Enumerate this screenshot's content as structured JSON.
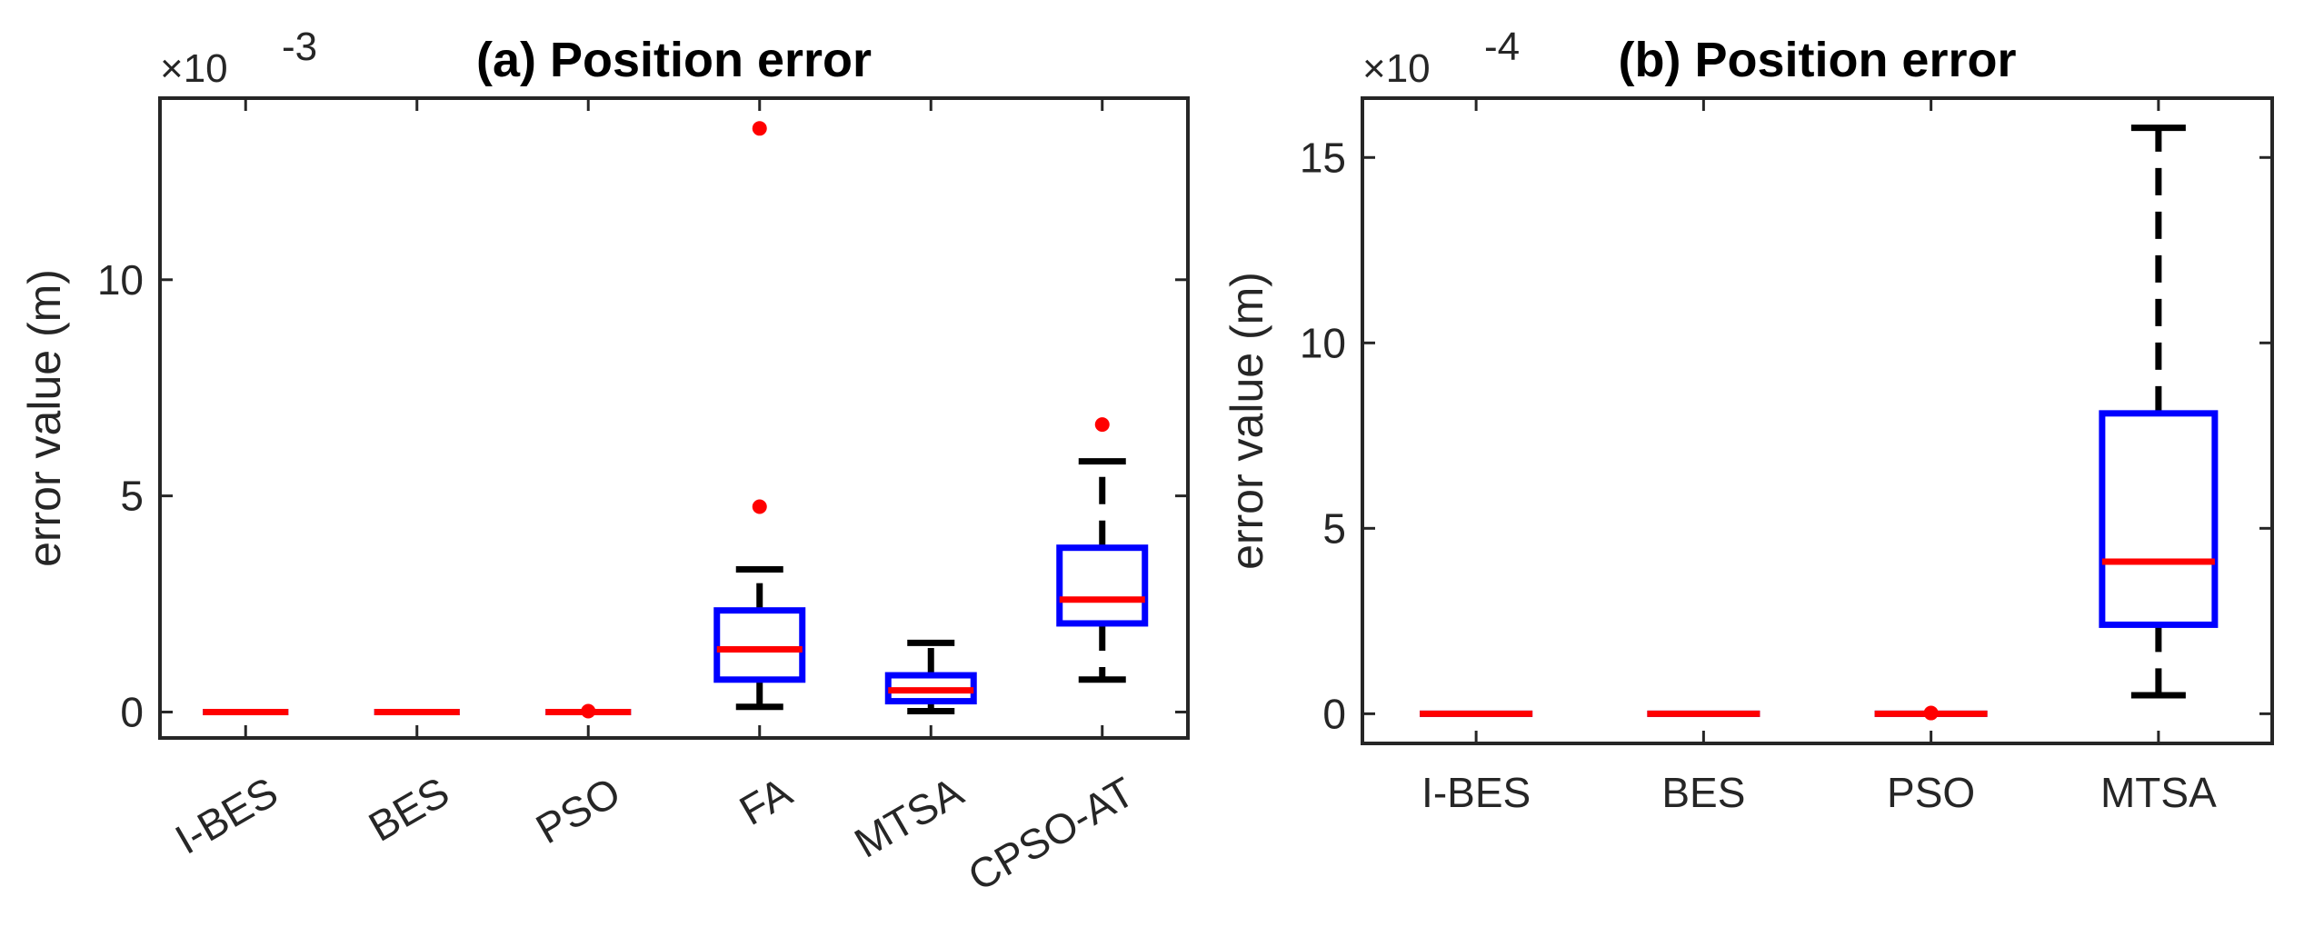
{
  "figure": {
    "panels": [
      "a",
      "b"
    ]
  },
  "chart_data": [
    {
      "id": "a",
      "type": "box",
      "title": "(a) Position error",
      "ylabel": "error value (m)",
      "xlabel": "",
      "exponent_label": "×10",
      "exponent_power": "-3",
      "ylim": [
        -0.6,
        14.2
      ],
      "yticks": [
        0,
        5,
        10
      ],
      "ytick_labels": [
        "0",
        "5",
        "10"
      ],
      "x_tick_rotation_deg": -30,
      "grid": false,
      "colors": {
        "box": "#0000ff",
        "median": "#ff0000",
        "whisker": "#000000",
        "outlier": "#ff0000",
        "axis": "#262626"
      },
      "categories": [
        "I-BES",
        "BES",
        "PSO",
        "FA",
        "MTSA",
        "CPSO-AT"
      ],
      "boxes": [
        {
          "label": "I-BES",
          "q1": 0.0,
          "median": 0.0,
          "q3": 0.0,
          "whisker_low": 0.0,
          "whisker_high": 0.0,
          "outliers": []
        },
        {
          "label": "BES",
          "q1": 0.0,
          "median": 0.0,
          "q3": 0.0,
          "whisker_low": 0.0,
          "whisker_high": 0.0,
          "outliers": []
        },
        {
          "label": "PSO",
          "q1": 0.0,
          "median": 0.0,
          "q3": 0.0,
          "whisker_low": 0.0,
          "whisker_high": 0.0,
          "outliers": [
            0.02
          ]
        },
        {
          "label": "FA",
          "q1": 0.75,
          "median": 1.45,
          "q3": 2.35,
          "whisker_low": 0.12,
          "whisker_high": 3.3,
          "outliers": [
            4.75,
            13.5
          ]
        },
        {
          "label": "MTSA",
          "q1": 0.25,
          "median": 0.5,
          "q3": 0.85,
          "whisker_low": 0.02,
          "whisker_high": 1.6,
          "outliers": []
        },
        {
          "label": "CPSO-AT",
          "q1": 2.05,
          "median": 2.6,
          "q3": 3.8,
          "whisker_low": 0.75,
          "whisker_high": 5.8,
          "outliers": [
            6.65
          ]
        }
      ]
    },
    {
      "id": "b",
      "type": "box",
      "title": "(b) Position error",
      "ylabel": "error value (m)",
      "xlabel": "",
      "exponent_label": "×10",
      "exponent_power": "-4",
      "ylim": [
        -0.8,
        16.6
      ],
      "yticks": [
        0,
        5,
        10,
        15
      ],
      "ytick_labels": [
        "0",
        "5",
        "10",
        "15"
      ],
      "x_tick_rotation_deg": 0,
      "grid": false,
      "colors": {
        "box": "#0000ff",
        "median": "#ff0000",
        "whisker": "#000000",
        "outlier": "#ff0000",
        "axis": "#262626"
      },
      "categories": [
        "I-BES",
        "BES",
        "PSO",
        "MTSA"
      ],
      "boxes": [
        {
          "label": "I-BES",
          "q1": 0.0,
          "median": 0.0,
          "q3": 0.0,
          "whisker_low": 0.0,
          "whisker_high": 0.0,
          "outliers": []
        },
        {
          "label": "BES",
          "q1": 0.0,
          "median": 0.0,
          "q3": 0.0,
          "whisker_low": 0.0,
          "whisker_high": 0.0,
          "outliers": []
        },
        {
          "label": "PSO",
          "q1": 0.0,
          "median": 0.0,
          "q3": 0.0,
          "whisker_low": 0.0,
          "whisker_high": 0.0,
          "outliers": [
            0.02
          ]
        },
        {
          "label": "MTSA",
          "q1": 2.4,
          "median": 4.1,
          "q3": 8.1,
          "whisker_low": 0.5,
          "whisker_high": 15.8,
          "outliers": []
        }
      ]
    }
  ]
}
